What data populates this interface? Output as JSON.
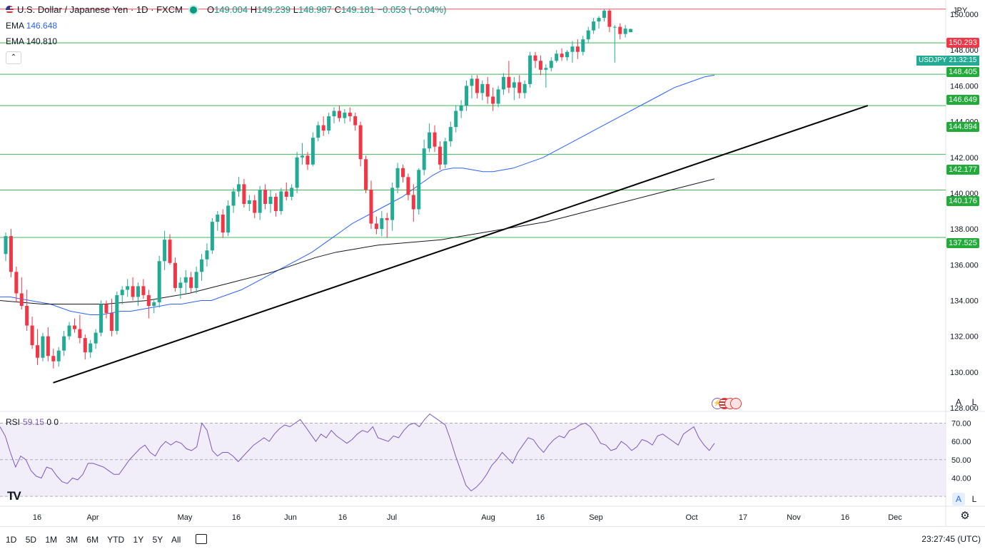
{
  "header": {
    "symbol_title": "U.S. Dollar / Japanese Yen · 1D · FXCM",
    "ohlc": {
      "open_label": "O",
      "open": "149.004",
      "high_label": "H",
      "high": "149.239",
      "low_label": "L",
      "low": "148.987",
      "close_label": "C",
      "close": "149.181",
      "change": "−0.053 (−0.04%)"
    },
    "ema1": {
      "label": "EMA",
      "value": "146.648",
      "color": "#2962ff"
    },
    "ema2": {
      "label": "EMA",
      "value": "140.810",
      "color": "#131722"
    },
    "collapse_icon": "chevron-up-icon"
  },
  "currency_selector": "JPY",
  "symbol_tag": {
    "symbol": "USDJPY",
    "countdown": "21:32:15"
  },
  "price_tags": [
    {
      "value": "150.293",
      "style": "red"
    },
    {
      "value": "148.405",
      "style": "green"
    },
    {
      "value": "146.649",
      "style": "green"
    },
    {
      "value": "144.894",
      "style": "green"
    },
    {
      "value": "142.177",
      "style": "green"
    },
    {
      "value": "140.176",
      "style": "green"
    },
    {
      "value": "137.525",
      "style": "green"
    }
  ],
  "scale_buttons": {
    "auto": "A",
    "log": "L"
  },
  "rsi": {
    "label": "RSI",
    "value": "59.15",
    "p1": "0",
    "p2": "0"
  },
  "bottom_bar": {
    "ranges": [
      "1D",
      "5D",
      "1M",
      "3M",
      "6M",
      "YTD",
      "1Y",
      "5Y",
      "All"
    ],
    "calendar_icon": "calendar-icon",
    "clock": "23:27:45 (UTC)"
  },
  "colors": {
    "up": "#22ab94",
    "down": "#f23645",
    "support": "#22ab3a",
    "resistance": "#f23645",
    "ema_fast": "#2962ff",
    "ema_slow": "#131722",
    "rsi": "#7e57c2",
    "rsi_band": "#ede7f6"
  },
  "chart_data": [
    {
      "type": "candlestick",
      "y_tick_labels": [
        "128.000",
        "130.000",
        "132.000",
        "134.000",
        "136.000",
        "138.000",
        "140.000",
        "142.000",
        "144.000",
        "146.000",
        "148.000",
        "150.000"
      ],
      "ylim": [
        127.8,
        150.8
      ],
      "x_tick_labels": [
        "16",
        "Apr",
        "May",
        "16",
        "Jun",
        "16",
        "Jul",
        "Aug",
        "16",
        "Sep",
        "Oct",
        "17",
        "Nov",
        "16",
        "Dec"
      ],
      "horizontal_levels": [
        150.293,
        148.405,
        146.649,
        144.894,
        142.177,
        140.176,
        137.525
      ],
      "trendline": {
        "from": [
          0.054,
          129.4
        ],
        "to": [
          0.881,
          144.9
        ]
      },
      "ohlc": [
        [
          136.6,
          137.8,
          136.2,
          137.6
        ],
        [
          137.6,
          138.0,
          135.3,
          135.6
        ],
        [
          135.6,
          135.9,
          133.9,
          134.4
        ],
        [
          134.4,
          135.3,
          133.5,
          133.7
        ],
        [
          133.7,
          134.6,
          132.3,
          132.6
        ],
        [
          132.6,
          133.1,
          131.3,
          131.5
        ],
        [
          131.5,
          132.4,
          130.4,
          130.8
        ],
        [
          130.8,
          132.2,
          130.6,
          132.0
        ],
        [
          132.0,
          132.5,
          130.6,
          130.9
        ],
        [
          130.9,
          131.3,
          130.2,
          130.6
        ],
        [
          130.6,
          131.4,
          130.3,
          131.2
        ],
        [
          131.2,
          132.3,
          130.9,
          132.0
        ],
        [
          132.0,
          132.8,
          131.8,
          132.6
        ],
        [
          132.6,
          133.0,
          132.2,
          132.4
        ],
        [
          132.4,
          133.2,
          131.6,
          131.9
        ],
        [
          131.9,
          132.1,
          130.7,
          131.1
        ],
        [
          131.1,
          131.8,
          130.8,
          131.6
        ],
        [
          131.6,
          132.4,
          131.3,
          132.2
        ],
        [
          132.2,
          134.0,
          132.0,
          133.8
        ],
        [
          133.8,
          134.0,
          133.0,
          133.3
        ],
        [
          133.3,
          134.1,
          132.0,
          132.3
        ],
        [
          132.3,
          134.5,
          132.1,
          134.3
        ],
        [
          134.3,
          134.8,
          133.8,
          134.6
        ],
        [
          134.6,
          135.2,
          134.2,
          134.8
        ],
        [
          134.8,
          135.3,
          134.0,
          134.2
        ],
        [
          134.2,
          135.0,
          133.7,
          134.8
        ],
        [
          134.8,
          135.2,
          134.1,
          134.3
        ],
        [
          134.3,
          134.6,
          133.0,
          133.7
        ],
        [
          133.7,
          134.1,
          133.3,
          133.9
        ],
        [
          133.9,
          136.5,
          133.6,
          136.2
        ],
        [
          136.2,
          137.9,
          135.7,
          137.4
        ],
        [
          137.4,
          137.7,
          136.0,
          136.1
        ],
        [
          136.1,
          136.4,
          134.5,
          134.7
        ],
        [
          134.7,
          135.3,
          134.1,
          135.0
        ],
        [
          135.0,
          135.7,
          134.4,
          135.3
        ],
        [
          135.3,
          135.6,
          134.4,
          134.7
        ],
        [
          134.7,
          135.9,
          134.4,
          135.6
        ],
        [
          135.6,
          136.6,
          135.1,
          136.3
        ],
        [
          136.3,
          137.2,
          135.9,
          136.8
        ],
        [
          136.8,
          138.6,
          136.6,
          138.4
        ],
        [
          138.4,
          139.0,
          137.9,
          138.8
        ],
        [
          138.8,
          139.1,
          137.5,
          137.8
        ],
        [
          137.8,
          139.6,
          137.6,
          139.3
        ],
        [
          139.3,
          140.3,
          138.9,
          140.1
        ],
        [
          140.1,
          140.9,
          139.8,
          140.5
        ],
        [
          140.5,
          140.8,
          139.2,
          139.4
        ],
        [
          139.4,
          139.9,
          139.0,
          139.6
        ],
        [
          139.6,
          139.9,
          138.6,
          138.9
        ],
        [
          138.9,
          140.4,
          138.5,
          140.2
        ],
        [
          140.2,
          140.5,
          139.1,
          139.4
        ],
        [
          139.4,
          140.2,
          138.9,
          139.8
        ],
        [
          139.8,
          140.0,
          138.7,
          139.0
        ],
        [
          139.0,
          140.3,
          138.8,
          140.1
        ],
        [
          140.1,
          140.6,
          139.6,
          139.8
        ],
        [
          139.8,
          140.5,
          139.6,
          140.3
        ],
        [
          140.3,
          142.3,
          140.0,
          142.0
        ],
        [
          142.0,
          142.8,
          141.6,
          142.1
        ],
        [
          142.1,
          142.3,
          141.3,
          141.6
        ],
        [
          141.6,
          143.4,
          141.5,
          143.1
        ],
        [
          143.1,
          144.0,
          142.9,
          143.8
        ],
        [
          143.8,
          144.3,
          143.2,
          143.5
        ],
        [
          143.5,
          144.5,
          143.3,
          144.3
        ],
        [
          144.3,
          144.8,
          143.9,
          144.6
        ],
        [
          144.6,
          144.9,
          144.0,
          144.2
        ],
        [
          144.2,
          144.7,
          143.9,
          144.5
        ],
        [
          144.5,
          144.8,
          144.0,
          144.3
        ],
        [
          144.3,
          144.5,
          143.5,
          143.8
        ],
        [
          143.8,
          144.0,
          141.5,
          141.9
        ],
        [
          141.9,
          142.1,
          140.0,
          140.2
        ],
        [
          140.2,
          140.7,
          138.0,
          138.3
        ],
        [
          138.3,
          138.7,
          137.7,
          138.0
        ],
        [
          138.0,
          139.0,
          137.6,
          138.6
        ],
        [
          138.6,
          138.9,
          137.5,
          138.5
        ],
        [
          138.5,
          140.6,
          137.9,
          140.3
        ],
        [
          140.3,
          141.7,
          140.0,
          141.4
        ],
        [
          141.4,
          141.6,
          140.6,
          140.9
        ],
        [
          140.9,
          141.1,
          139.6,
          139.9
        ],
        [
          139.9,
          140.5,
          138.4,
          139.1
        ],
        [
          139.1,
          141.4,
          138.8,
          141.3
        ],
        [
          141.3,
          143.0,
          141.0,
          142.5
        ],
        [
          142.5,
          143.9,
          142.3,
          143.4
        ],
        [
          143.4,
          143.8,
          142.3,
          142.6
        ],
        [
          142.6,
          142.9,
          141.3,
          141.6
        ],
        [
          141.6,
          143.1,
          141.4,
          142.9
        ],
        [
          142.9,
          144.0,
          142.6,
          143.7
        ],
        [
          143.7,
          144.9,
          143.4,
          144.6
        ],
        [
          144.6,
          145.2,
          144.2,
          144.9
        ],
        [
          144.9,
          146.3,
          144.6,
          146.0
        ],
        [
          146.0,
          146.6,
          145.3,
          146.4
        ],
        [
          146.4,
          146.6,
          145.3,
          145.6
        ],
        [
          145.6,
          146.3,
          145.2,
          146.1
        ],
        [
          146.1,
          146.5,
          145.0,
          145.4
        ],
        [
          145.4,
          145.9,
          144.6,
          145.0
        ],
        [
          145.0,
          146.0,
          144.8,
          145.8
        ],
        [
          145.8,
          146.7,
          145.5,
          146.5
        ],
        [
          146.5,
          147.4,
          145.6,
          145.9
        ],
        [
          145.9,
          146.5,
          145.2,
          146.2
        ],
        [
          146.2,
          146.6,
          145.3,
          145.6
        ],
        [
          145.6,
          146.3,
          145.3,
          146.1
        ],
        [
          146.1,
          147.9,
          145.9,
          147.7
        ],
        [
          147.7,
          147.9,
          147.0,
          147.4
        ],
        [
          147.4,
          147.7,
          146.6,
          146.9
        ],
        [
          146.9,
          147.2,
          145.9,
          147.0
        ],
        [
          147.0,
          147.6,
          146.8,
          147.4
        ],
        [
          147.4,
          148.0,
          147.3,
          147.8
        ],
        [
          147.8,
          148.1,
          147.4,
          147.6
        ],
        [
          147.6,
          148.0,
          147.4,
          147.9
        ],
        [
          147.9,
          148.5,
          147.3,
          148.2
        ],
        [
          148.2,
          148.6,
          147.5,
          147.9
        ],
        [
          147.9,
          148.8,
          147.7,
          148.6
        ],
        [
          148.6,
          149.3,
          148.4,
          149.1
        ],
        [
          149.1,
          149.8,
          148.9,
          149.6
        ],
        [
          149.6,
          149.9,
          149.2,
          149.8
        ],
        [
          149.8,
          150.3,
          149.6,
          150.2
        ],
        [
          150.2,
          150.3,
          149.0,
          149.3
        ],
        [
          149.3,
          149.4,
          147.3,
          149.3
        ],
        [
          149.3,
          149.5,
          148.6,
          148.9
        ],
        [
          148.9,
          149.4,
          148.7,
          149.2
        ],
        [
          149.0,
          149.2,
          148.99,
          149.18
        ]
      ],
      "ema_fast": [
        134.2,
        134.2,
        134.1,
        134.0,
        133.9,
        133.8,
        133.6,
        133.4,
        133.3,
        133.2,
        133.2,
        133.3,
        133.4,
        133.4,
        133.5,
        133.6,
        133.7,
        133.8,
        133.8,
        133.9,
        134.0,
        134.0,
        134.2,
        134.4,
        134.6,
        134.9,
        135.2,
        135.5,
        135.8,
        136.1,
        136.4,
        136.7,
        137.1,
        137.5,
        137.9,
        138.3,
        138.6,
        138.9,
        139.2,
        139.5,
        139.8,
        140.2,
        140.6,
        141.0,
        141.3,
        141.4,
        141.4,
        141.3,
        141.2,
        141.2,
        141.3,
        141.4,
        141.6,
        141.8,
        142.0,
        142.3,
        142.6,
        142.9,
        143.2,
        143.5,
        143.8,
        144.1,
        144.4,
        144.7,
        145.0,
        145.3,
        145.6,
        145.9,
        146.1,
        146.3,
        146.5,
        146.6
      ],
      "ema_slow": [
        134.0,
        133.9,
        133.8,
        133.8,
        133.8,
        133.8,
        133.9,
        134.0,
        134.2,
        134.4,
        134.7,
        135.0,
        135.3,
        135.6,
        136.0,
        136.4,
        136.7,
        136.9,
        137.1,
        137.2,
        137.3,
        137.4,
        137.6,
        137.8,
        138.0,
        138.2,
        138.4,
        138.7,
        139.0,
        139.3,
        139.6,
        139.9,
        140.2,
        140.5,
        140.8
      ],
      "series_names": []
    },
    {
      "type": "line",
      "title": "RSI",
      "y_tick_labels": [
        "40.00",
        "50.00",
        "60.00",
        "70.00"
      ],
      "ylim": [
        25,
        76
      ],
      "bands": [
        30,
        70
      ],
      "values": [
        68,
        63,
        54,
        46,
        52,
        50,
        44,
        41,
        40,
        46,
        45,
        41,
        38,
        37,
        40,
        39,
        42,
        48,
        48,
        47,
        46,
        44,
        42,
        42,
        46,
        50,
        53,
        56,
        58,
        54,
        52,
        57,
        60,
        58,
        60,
        59,
        56,
        55,
        57,
        70,
        66,
        55,
        52,
        54,
        54,
        52,
        49,
        52,
        55,
        58,
        60,
        62,
        60,
        64,
        67,
        69,
        68,
        70,
        72,
        68,
        64,
        60,
        64,
        62,
        66,
        63,
        61,
        59,
        61,
        64,
        66,
        65,
        68,
        62,
        61,
        60,
        63,
        62,
        66,
        69,
        70,
        68,
        72,
        75,
        73,
        71,
        69,
        61,
        52,
        44,
        36,
        33,
        35,
        38,
        42,
        47,
        50,
        54,
        51,
        48,
        54,
        58,
        62,
        61,
        57,
        54,
        58,
        61,
        63,
        62,
        66,
        67,
        69,
        70,
        68,
        64,
        59,
        58,
        55,
        56,
        60,
        58,
        55,
        57,
        61,
        60,
        58,
        63,
        64,
        62,
        60,
        58,
        64,
        66,
        68,
        62,
        58,
        55,
        59
      ],
      "series_names": []
    }
  ]
}
